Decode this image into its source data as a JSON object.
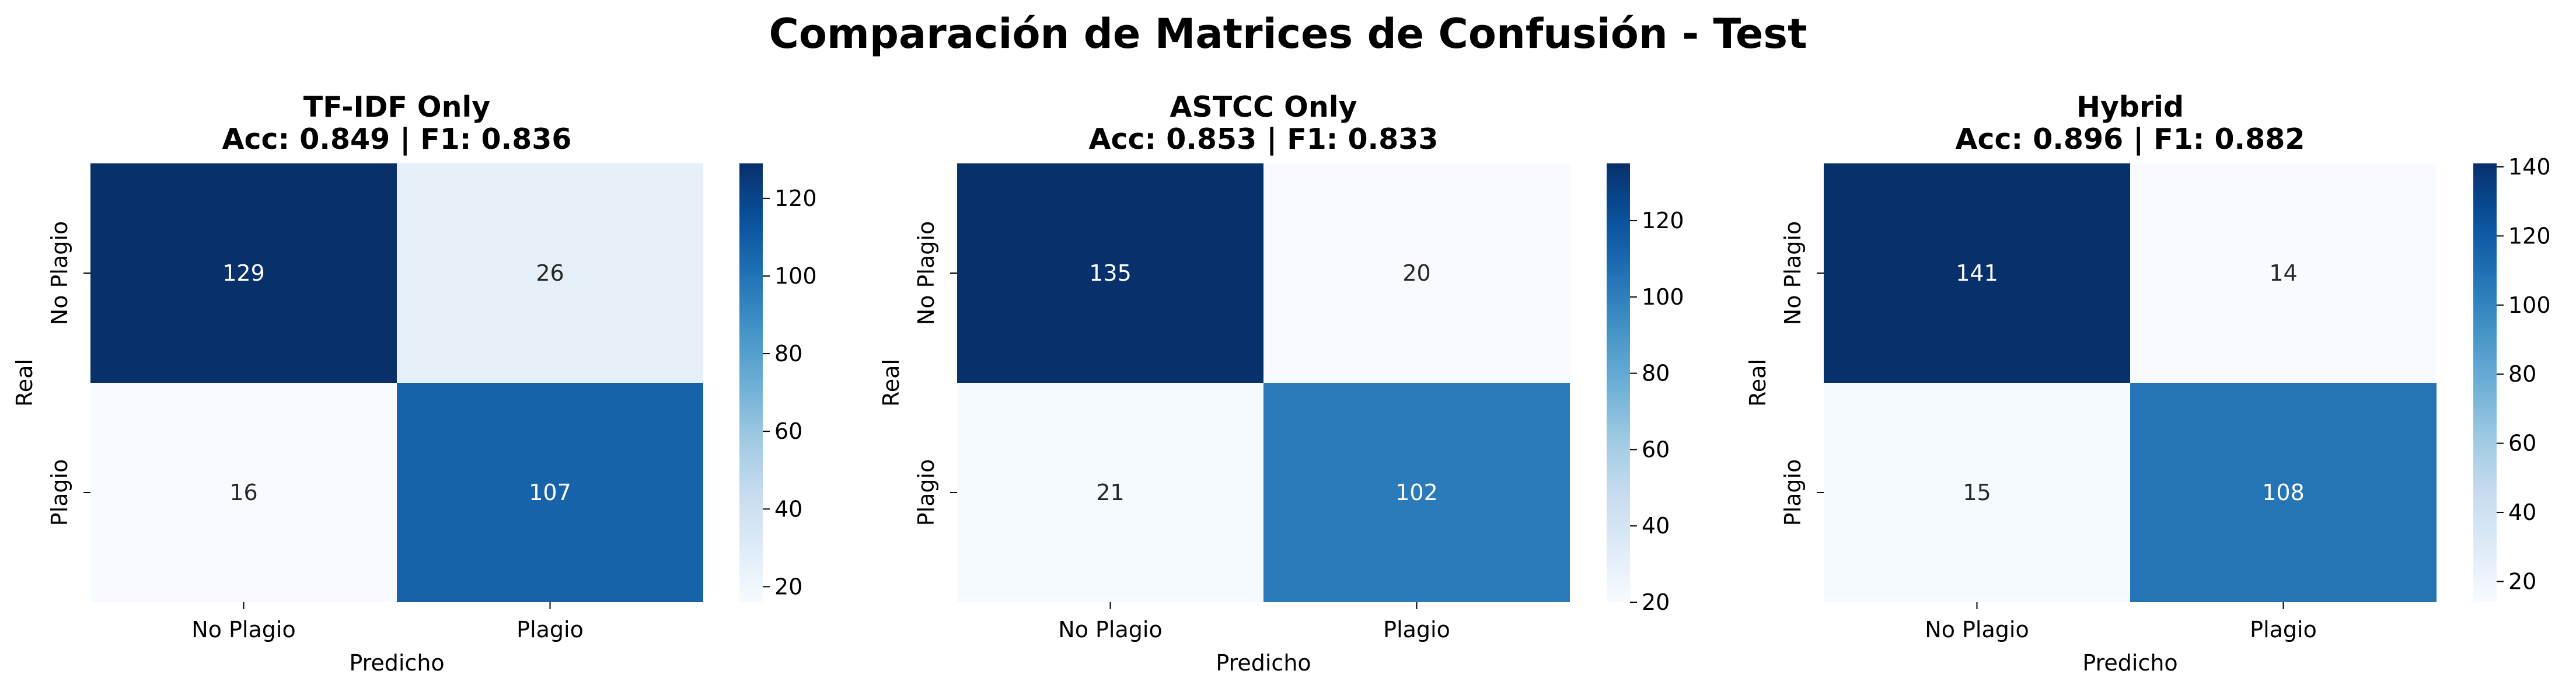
{
  "figure": {
    "suptitle": "Comparación de Matrices de Confusión - Test"
  },
  "chart_data": [
    {
      "type": "heatmap",
      "title": "TF-IDF Only",
      "subtitle": "Acc: 0.849 | F1: 0.836",
      "xlabel": "Predicho",
      "ylabel": "Real",
      "x_categories": [
        "No Plagio",
        "Plagio"
      ],
      "y_categories": [
        "No Plagio",
        "Plagio"
      ],
      "values": [
        [
          129,
          26
        ],
        [
          16,
          107
        ]
      ],
      "colorbar": {
        "min": 16,
        "max": 129,
        "ticks": [
          20,
          40,
          60,
          80,
          100,
          120
        ]
      },
      "colormap": "Blues",
      "grid": false
    },
    {
      "type": "heatmap",
      "title": "ASTCC Only",
      "subtitle": "Acc: 0.853 | F1: 0.833",
      "xlabel": "Predicho",
      "ylabel": "Real",
      "x_categories": [
        "No Plagio",
        "Plagio"
      ],
      "y_categories": [
        "No Plagio",
        "Plagio"
      ],
      "values": [
        [
          135,
          20
        ],
        [
          21,
          102
        ]
      ],
      "colorbar": {
        "min": 20,
        "max": 135,
        "ticks": [
          20,
          40,
          60,
          80,
          100,
          120
        ]
      },
      "colormap": "Blues",
      "grid": false
    },
    {
      "type": "heatmap",
      "title": "Hybrid",
      "subtitle": "Acc: 0.896 | F1: 0.882",
      "xlabel": "Predicho",
      "ylabel": "Real",
      "x_categories": [
        "No Plagio",
        "Plagio"
      ],
      "y_categories": [
        "No Plagio",
        "Plagio"
      ],
      "values": [
        [
          141,
          14
        ],
        [
          15,
          108
        ]
      ],
      "colorbar": {
        "min": 14,
        "max": 141,
        "ticks": [
          20,
          40,
          60,
          80,
          100,
          120,
          140
        ]
      },
      "colormap": "Blues",
      "grid": false
    }
  ]
}
